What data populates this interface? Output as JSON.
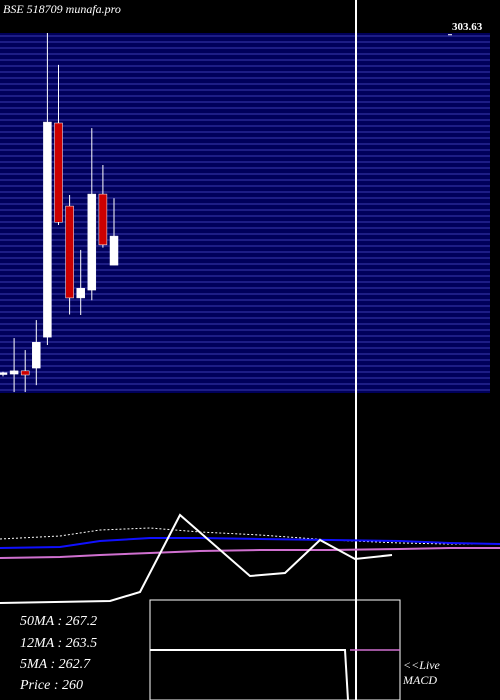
{
  "chart_data": {
    "type": "candlestick",
    "title": "BSE 518709 munafa.pro",
    "ylim": [
      226,
      304
    ],
    "yticks": [
      303.63
    ],
    "grid": true,
    "up_color": "#ffffff",
    "down_color": "#cc0000",
    "open": [
      230.0,
      230.1,
      230.8,
      231.4,
      238.1,
      284.5,
      266.5,
      246.6,
      248.3,
      269.1,
      253.7
    ],
    "high": [
      230.6,
      237.9,
      235.3,
      241.8,
      304.0,
      297.1,
      268.9,
      257.0,
      283.4,
      275.4,
      268.2
    ],
    "low": [
      229.6,
      226.2,
      226.2,
      227.7,
      236.4,
      262.4,
      243.0,
      242.9,
      246.1,
      257.5,
      253.7
    ],
    "close": [
      230.4,
      230.8,
      229.9,
      237.0,
      284.7,
      263.0,
      246.6,
      248.7,
      269.1,
      258.1,
      260.0
    ],
    "info": [
      "50MA : 267.2",
      "12MA : 263.5",
      "5MA : 262.7",
      "Price   : 260"
    ],
    "live": "<<Live",
    "macd": "MACD"
  }
}
